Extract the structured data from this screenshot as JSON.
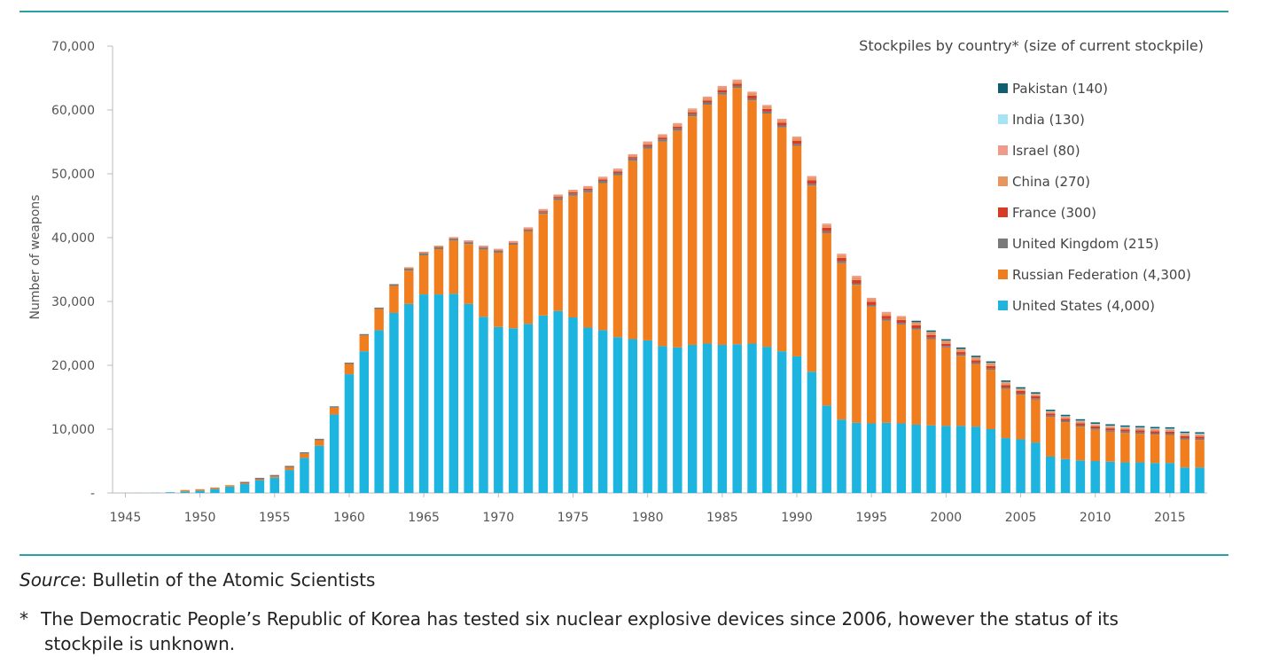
{
  "footer": {
    "source_label": "Source",
    "source_text": ": Bulletin of the Atomic Scientists",
    "note_star": "*",
    "note_line1": "The Democratic People’s Republic of Korea has tested six nuclear explosive devices since 2006, however the status of its",
    "note_line2": "stockpile is unknown."
  },
  "chart_data": {
    "type": "bar",
    "stacked": true,
    "title": "Stockpiles by country* (size of current stockpile)",
    "ylabel": "Number of weapons",
    "xlabel": "",
    "ylim": [
      0,
      70000
    ],
    "y_ticks": [
      {
        "value": 0,
        "label": "-"
      },
      {
        "value": 10000,
        "label": "10,000"
      },
      {
        "value": 20000,
        "label": "20,000"
      },
      {
        "value": 30000,
        "label": "30,000"
      },
      {
        "value": 40000,
        "label": "40,000"
      },
      {
        "value": 50000,
        "label": "50,000"
      },
      {
        "value": 60000,
        "label": "60,000"
      },
      {
        "value": 70000,
        "label": "70,000"
      }
    ],
    "x_ticks": [
      "1945",
      "1950",
      "1955",
      "1960",
      "1965",
      "1970",
      "1975",
      "1980",
      "1985",
      "1990",
      "1995",
      "2000",
      "2005",
      "2010",
      "2015"
    ],
    "legend_position": "top-right",
    "categories": [
      1945,
      1946,
      1947,
      1948,
      1949,
      1950,
      1951,
      1952,
      1953,
      1954,
      1955,
      1956,
      1957,
      1958,
      1959,
      1960,
      1961,
      1962,
      1963,
      1964,
      1965,
      1966,
      1967,
      1968,
      1969,
      1970,
      1971,
      1972,
      1973,
      1974,
      1975,
      1976,
      1977,
      1978,
      1979,
      1980,
      1981,
      1982,
      1983,
      1984,
      1985,
      1986,
      1987,
      1988,
      1989,
      1990,
      1991,
      1992,
      1993,
      1994,
      1995,
      1996,
      1997,
      1998,
      1999,
      2000,
      2001,
      2002,
      2003,
      2004,
      2005,
      2006,
      2007,
      2008,
      2009,
      2010,
      2011,
      2012,
      2013,
      2014,
      2015,
      2016,
      2017
    ],
    "series": [
      {
        "name": "United States (4,000)",
        "color": "#1eb4e0",
        "values": [
          6,
          11,
          32,
          110,
          235,
          370,
          640,
          1000,
          1400,
          2000,
          2400,
          3600,
          5500,
          7400,
          12300,
          18600,
          22200,
          25500,
          28200,
          29600,
          31100,
          31100,
          31200,
          29600,
          27600,
          26000,
          25800,
          26500,
          27800,
          28500,
          27500,
          25900,
          25500,
          24400,
          24100,
          23900,
          23000,
          22800,
          23200,
          23400,
          23200,
          23300,
          23400,
          22900,
          22200,
          21400,
          19000,
          13700,
          11500,
          11000,
          10900,
          11000,
          10900,
          10700,
          10600,
          10500,
          10500,
          10400,
          10000,
          8600,
          8400,
          7900,
          5700,
          5300,
          5100,
          5000,
          4900,
          4800,
          4800,
          4700,
          4700,
          4000,
          4000
        ]
      },
      {
        "name": "Russian Federation (4,300)",
        "color": "#f07d1e",
        "values": [
          0,
          0,
          0,
          0,
          1,
          5,
          25,
          50,
          120,
          150,
          200,
          426,
          660,
          869,
          1060,
          1605,
          2471,
          3322,
          4238,
          5221,
          6129,
          7089,
          8339,
          9399,
          10538,
          11643,
          13092,
          14478,
          15915,
          17385,
          19055,
          21205,
          23044,
          25393,
          27935,
          30062,
          32049,
          33952,
          35804,
          37431,
          39197,
          40159,
          38107,
          36538,
          35078,
          32980,
          29154,
          27000,
          24500,
          21600,
          18300,
          16000,
          15500,
          14900,
          13500,
          12300,
          11000,
          9800,
          9300,
          7700,
          7000,
          6700,
          6200,
          5800,
          5300,
          4900,
          4700,
          4600,
          4500,
          4450,
          4400,
          4400,
          4300
        ]
      },
      {
        "name": "United Kingdom (215)",
        "color": "#7a7a7a",
        "values": [
          0,
          0,
          0,
          0,
          0,
          0,
          0,
          0,
          1,
          5,
          10,
          15,
          20,
          22,
          25,
          30,
          50,
          205,
          280,
          310,
          310,
          280,
          270,
          280,
          308,
          280,
          220,
          220,
          275,
          325,
          350,
          350,
          350,
          350,
          350,
          350,
          350,
          350,
          350,
          350,
          350,
          300,
          300,
          300,
          300,
          300,
          300,
          300,
          300,
          250,
          250,
          250,
          250,
          230,
          230,
          225,
          225,
          225,
          225,
          225,
          225,
          225,
          225,
          225,
          225,
          225,
          225,
          225,
          225,
          215,
          215,
          215,
          215
        ]
      },
      {
        "name": "France (300)",
        "color": "#d93a25",
        "values": [
          0,
          0,
          0,
          0,
          0,
          0,
          0,
          0,
          0,
          0,
          0,
          0,
          0,
          0,
          0,
          0,
          0,
          0,
          0,
          4,
          32,
          36,
          36,
          36,
          36,
          36,
          45,
          70,
          116,
          145,
          188,
          212,
          228,
          235,
          235,
          250,
          274,
          279,
          280,
          280,
          360,
          355,
          420,
          410,
          410,
          505,
          540,
          540,
          525,
          510,
          500,
          500,
          450,
          450,
          425,
          350,
          350,
          350,
          350,
          350,
          350,
          350,
          300,
          300,
          300,
          300,
          300,
          300,
          300,
          300,
          300,
          300,
          300
        ]
      },
      {
        "name": "China (270)",
        "color": "#e6965e",
        "values": [
          0,
          0,
          0,
          0,
          0,
          0,
          0,
          0,
          0,
          0,
          0,
          0,
          0,
          0,
          0,
          0,
          0,
          0,
          0,
          1,
          5,
          20,
          25,
          35,
          50,
          75,
          100,
          130,
          150,
          170,
          185,
          190,
          200,
          220,
          230,
          280,
          300,
          340,
          380,
          410,
          425,
          425,
          415,
          410,
          410,
          430,
          435,
          435,
          435,
          435,
          400,
          400,
          400,
          400,
          400,
          400,
          400,
          400,
          400,
          400,
          235,
          235,
          235,
          240,
          240,
          240,
          240,
          250,
          250,
          260,
          260,
          270,
          270
        ]
      },
      {
        "name": "Israel (80)",
        "color": "#f09a8c",
        "values": [
          0,
          0,
          0,
          0,
          0,
          0,
          0,
          0,
          0,
          0,
          0,
          0,
          0,
          0,
          0,
          0,
          0,
          0,
          0,
          0,
          0,
          0,
          2,
          6,
          8,
          11,
          13,
          15,
          18,
          20,
          22,
          25,
          30,
          34,
          40,
          42,
          45,
          48,
          50,
          52,
          55,
          57,
          60,
          62,
          64,
          66,
          68,
          70,
          70,
          72,
          72,
          74,
          76,
          78,
          80,
          80,
          80,
          80,
          80,
          80,
          80,
          80,
          80,
          80,
          80,
          80,
          80,
          80,
          80,
          80,
          80,
          80,
          80
        ]
      },
      {
        "name": "India (130)",
        "color": "#a6e3f5",
        "values": [
          0,
          0,
          0,
          0,
          0,
          0,
          0,
          0,
          0,
          0,
          0,
          0,
          0,
          0,
          0,
          0,
          0,
          0,
          0,
          0,
          0,
          0,
          0,
          0,
          0,
          0,
          0,
          0,
          0,
          0,
          0,
          0,
          0,
          0,
          0,
          0,
          0,
          0,
          0,
          0,
          0,
          0,
          0,
          0,
          0,
          0,
          0,
          0,
          0,
          0,
          0,
          0,
          0,
          0,
          1,
          5,
          15,
          25,
          40,
          50,
          60,
          70,
          80,
          85,
          90,
          95,
          100,
          105,
          110,
          115,
          120,
          125,
          130
        ]
      },
      {
        "name": "Pakistan (140)",
        "color": "#0f5f6e",
        "values": [
          0,
          0,
          0,
          0,
          0,
          0,
          0,
          0,
          0,
          0,
          0,
          0,
          0,
          0,
          0,
          0,
          0,
          0,
          0,
          0,
          0,
          0,
          0,
          0,
          0,
          0,
          0,
          0,
          0,
          0,
          0,
          0,
          0,
          0,
          0,
          0,
          0,
          0,
          0,
          0,
          0,
          0,
          0,
          0,
          0,
          0,
          0,
          0,
          0,
          0,
          0,
          0,
          0,
          5,
          10,
          15,
          25,
          35,
          45,
          55,
          65,
          75,
          85,
          90,
          95,
          100,
          105,
          110,
          115,
          120,
          125,
          130,
          140
        ]
      }
    ]
  }
}
